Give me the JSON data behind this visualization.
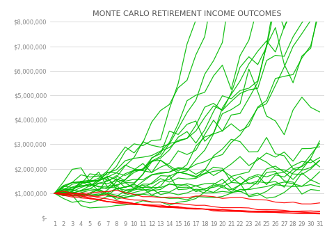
{
  "title": "MONTE CARLO RETIREMENT INCOME OUTCOMES",
  "x_min": 1,
  "x_max": 31,
  "y_min": 0,
  "y_max": 8000000,
  "y_ticks": [
    0,
    1000000,
    2000000,
    3000000,
    4000000,
    5000000,
    6000000,
    7000000,
    8000000
  ],
  "y_tick_labels": [
    "$-",
    "$1,000,000",
    "$2,000,000",
    "$3,000,000",
    "$4,000,000",
    "$5,000,000",
    "$6,000,000",
    "$7,000,000",
    "$8,000,000"
  ],
  "green_color": "#00BB00",
  "red_color": "#FF0000",
  "background_color": "#FFFFFF",
  "grid_color": "#CCCCCC",
  "title_fontsize": 8,
  "tick_fontsize": 6,
  "n_steps": 31,
  "initial_value": 1000000,
  "n_green": 23,
  "n_red": 6,
  "line_width": 0.9
}
